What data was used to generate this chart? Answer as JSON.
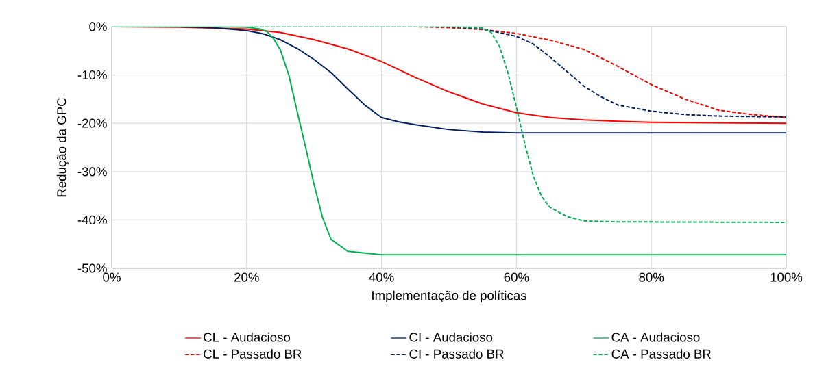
{
  "chart_data": {
    "type": "line",
    "xlabel": "Implementação de políticas",
    "ylabel": "Redução da GPC",
    "xlim": [
      0,
      100
    ],
    "ylim": [
      -50,
      0
    ],
    "xticks": [
      {
        "value": 0,
        "label": "0%"
      },
      {
        "value": 20,
        "label": "20%"
      },
      {
        "value": 40,
        "label": "40%"
      },
      {
        "value": 60,
        "label": "60%"
      },
      {
        "value": 80,
        "label": "80%"
      },
      {
        "value": 100,
        "label": "100%"
      }
    ],
    "yticks": [
      {
        "value": -50,
        "label": "-50%"
      },
      {
        "value": -40,
        "label": "-40%"
      },
      {
        "value": -30,
        "label": "-30%"
      },
      {
        "value": -20,
        "label": "-20%"
      },
      {
        "value": -10,
        "label": "-10%"
      },
      {
        "value": 0,
        "label": "0%"
      }
    ],
    "grid": true,
    "legend": "bottom",
    "marker": "none",
    "series": [
      {
        "name": "CL - Audacioso",
        "color": "#ff0000",
        "line_style": "solid",
        "x": [
          0,
          10,
          20,
          25,
          30,
          35,
          40,
          45,
          50,
          55,
          60,
          65,
          70,
          75,
          80,
          90,
          100
        ],
        "values": [
          0,
          -0.1,
          -0.5,
          -1.2,
          -2.7,
          -4.6,
          -7.2,
          -10.5,
          -13.5,
          -16,
          -17.8,
          -18.8,
          -19.3,
          -19.6,
          -19.8,
          -19.9,
          -20
        ]
      },
      {
        "name": "CI - Audacioso",
        "color": "#002060",
        "line_style": "solid",
        "x": [
          0,
          10,
          15,
          20,
          22.5,
          25,
          27.5,
          30,
          32.5,
          35,
          37.5,
          40,
          42.5,
          45,
          50,
          55,
          60,
          80,
          100
        ],
        "values": [
          0,
          0,
          -0.2,
          -0.8,
          -1.5,
          -2.7,
          -4.5,
          -6.8,
          -9.5,
          -12.9,
          -16.2,
          -18.8,
          -19.7,
          -20.3,
          -21.3,
          -21.8,
          -22,
          -22,
          -22
        ]
      },
      {
        "name": "CA - Audacioso",
        "color": "#00b050",
        "line_style": "solid",
        "x": [
          0,
          15,
          20,
          22,
          23,
          24,
          25,
          26.25,
          27.5,
          28.75,
          30,
          31.25,
          32.5,
          35,
          40,
          60,
          80,
          100
        ],
        "values": [
          0,
          0,
          -0.1,
          -0.5,
          -1,
          -2.5,
          -4.8,
          -10,
          -17.6,
          -25,
          -32.7,
          -39.5,
          -44,
          -46.5,
          -47.2,
          -47.2,
          -47.2,
          -47.2
        ]
      },
      {
        "name": "CL - Passado BR",
        "color": "#ff0000",
        "line_style": "dashed",
        "x": [
          0,
          30,
          45,
          50,
          55,
          60,
          65,
          70,
          75,
          80,
          85,
          90,
          95,
          100
        ],
        "values": [
          0,
          0,
          0,
          -0.2,
          -0.6,
          -1.4,
          -2.8,
          -4.7,
          -8.2,
          -12,
          -15,
          -17.3,
          -18.2,
          -18.8
        ]
      },
      {
        "name": "CI - Passado BR",
        "color": "#002060",
        "line_style": "dashed",
        "x": [
          0,
          30,
          50,
          55,
          60,
          62.5,
          65,
          67.5,
          70,
          72.5,
          75,
          80,
          85,
          90,
          100
        ],
        "values": [
          0,
          0,
          0,
          -0.5,
          -2,
          -3.6,
          -6.3,
          -9.3,
          -12.3,
          -14.5,
          -16.2,
          -17.5,
          -18.2,
          -18.5,
          -18.7
        ]
      },
      {
        "name": "CA - Passado BR",
        "color": "#00b050",
        "line_style": "dashed",
        "x": [
          0,
          30,
          50,
          55,
          56.25,
          57.5,
          58.75,
          60,
          61.25,
          62.5,
          63.75,
          65,
          67.5,
          70,
          75,
          100
        ],
        "values": [
          0,
          0,
          0,
          -0.3,
          -1.2,
          -4.1,
          -9.6,
          -16.7,
          -24.3,
          -30.9,
          -35.2,
          -37.4,
          -39.3,
          -40.2,
          -40.4,
          -40.5
        ]
      }
    ]
  }
}
